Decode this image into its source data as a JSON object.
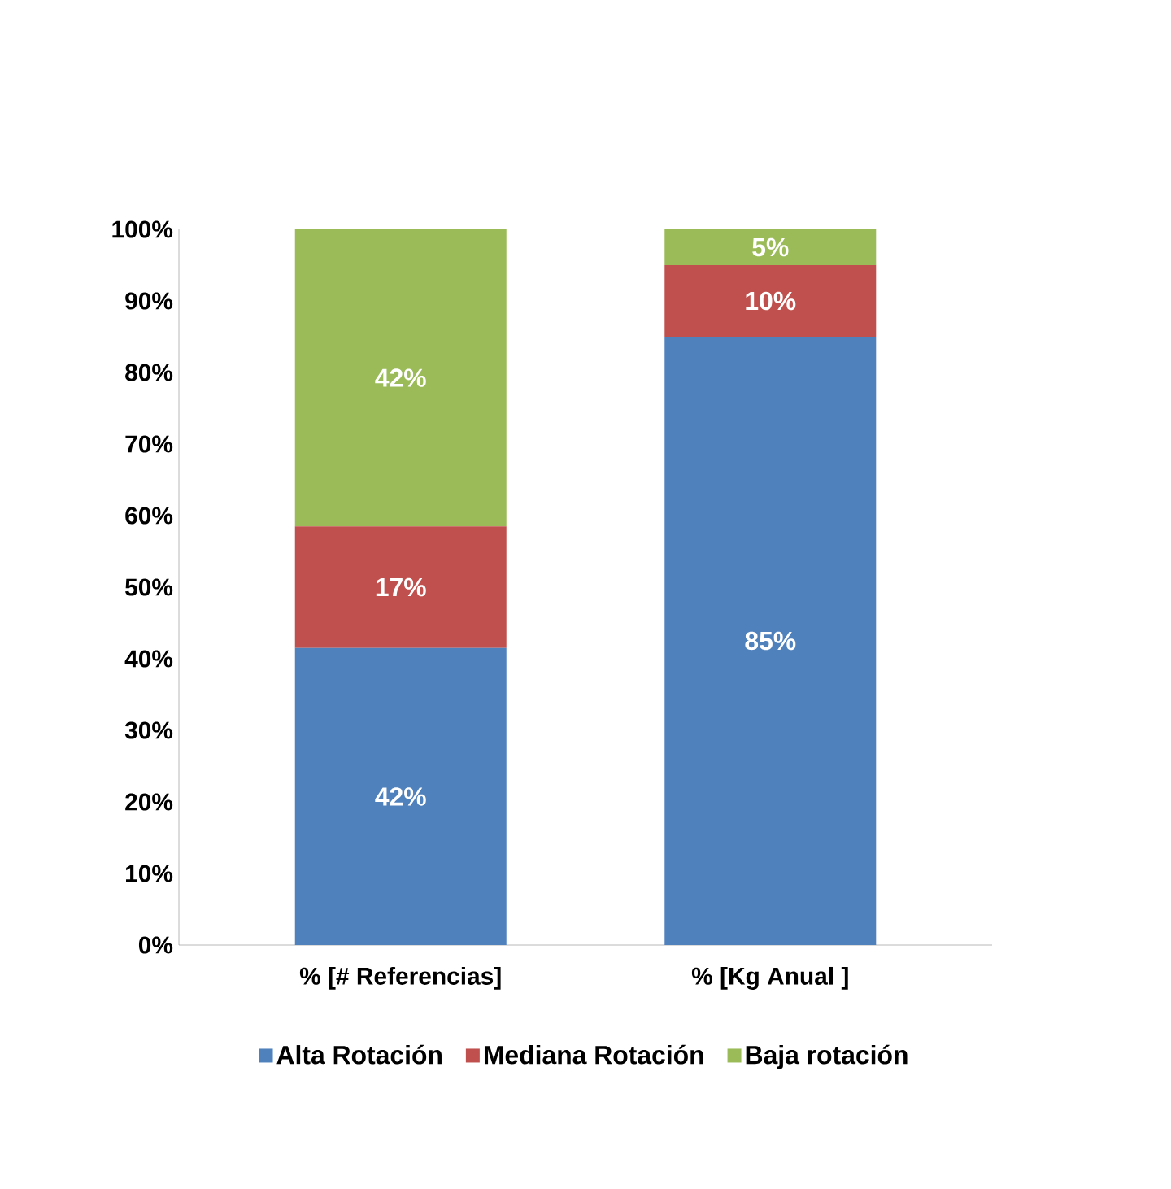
{
  "chart_data": {
    "type": "bar",
    "stacked": true,
    "categories": [
      "% [# Referencias]",
      "%  [Kg Anual ]"
    ],
    "series": [
      {
        "name": "Alta Rotación",
        "color": "#4f81bd",
        "values": [
          41.5,
          85
        ],
        "value_labels": [
          "42%",
          "85%"
        ]
      },
      {
        "name": "Mediana Rotación",
        "color": "#c0504d",
        "values": [
          17,
          10
        ],
        "value_labels": [
          "17%",
          "10%"
        ]
      },
      {
        "name": "Baja rotación",
        "color": "#9bbb59",
        "values": [
          41.5,
          5
        ],
        "value_labels": [
          "42%",
          "5%"
        ]
      }
    ],
    "ylim": [
      0,
      100
    ],
    "yticks": [
      {
        "value": 0,
        "label": "0%"
      },
      {
        "value": 10,
        "label": "10%"
      },
      {
        "value": 20,
        "label": "20%"
      },
      {
        "value": 30,
        "label": "30%"
      },
      {
        "value": 40,
        "label": "40%"
      },
      {
        "value": 50,
        "label": "50%"
      },
      {
        "value": 60,
        "label": "60%"
      },
      {
        "value": 70,
        "label": "70%"
      },
      {
        "value": 80,
        "label": "80%"
      },
      {
        "value": 90,
        "label": "90%"
      },
      {
        "value": 100,
        "label": "100%"
      }
    ],
    "legend": "bottom"
  }
}
